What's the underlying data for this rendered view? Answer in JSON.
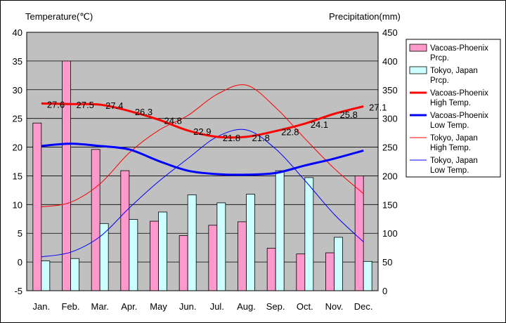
{
  "chart_data": {
    "type": "bar+line",
    "categories": [
      "Jan.",
      "Feb.",
      "Mar.",
      "Apr.",
      "May",
      "Jun.",
      "Jul.",
      "Aug.",
      "Sep.",
      "Oct.",
      "Nov.",
      "Dec."
    ],
    "y_left": {
      "label": "Temperature(℃)",
      "range": [
        -5,
        40
      ],
      "ticks": [
        -5,
        0,
        5,
        10,
        15,
        20,
        25,
        30,
        35,
        40
      ]
    },
    "y_right": {
      "label": "Precipitation(mm)",
      "range": [
        0,
        450
      ],
      "ticks": [
        0,
        50,
        100,
        150,
        200,
        250,
        300,
        350,
        400,
        450
      ]
    },
    "grid": true,
    "legend_position": "right",
    "bar_series": [
      {
        "name": "Vacoas-Phoenix Prcp.",
        "color": "#ff99cc",
        "values": [
          292,
          400,
          246,
          209,
          121,
          96,
          114,
          120,
          74,
          64,
          66,
          200
        ]
      },
      {
        "name": "Tokyo, Japan Prcp.",
        "color": "#ccffff",
        "values": [
          52,
          56,
          117,
          124,
          137,
          167,
          153,
          168,
          209,
          197,
          93,
          51
        ]
      }
    ],
    "line_series": [
      {
        "name": "Vacoas-Phoenix High Temp.",
        "color": "#ff0000",
        "width": "thick",
        "values": [
          27.6,
          27.5,
          27.4,
          26.3,
          24.8,
          22.9,
          21.8,
          21.8,
          22.8,
          24.1,
          25.8,
          27.1
        ],
        "labels": [
          "27.6",
          "27.5",
          "27.4",
          "26.3",
          "24.8",
          "22.9",
          "21.8",
          "21.8",
          "22.8",
          "24.1",
          "25.8",
          "27.1"
        ]
      },
      {
        "name": "Vacoas-Phoenix Low Temp.",
        "color": "#0000ff",
        "width": "thick",
        "values": [
          20.2,
          20.6,
          20.2,
          19.6,
          17.6,
          15.9,
          15.3,
          15.2,
          15.5,
          16.8,
          18.0,
          19.4
        ]
      },
      {
        "name": "Tokyo, Japan High Temp.",
        "color": "#ff0000",
        "width": "thin",
        "values": [
          9.6,
          10.4,
          13.6,
          19.0,
          22.9,
          25.5,
          29.2,
          30.8,
          26.9,
          21.5,
          16.3,
          11.9
        ]
      },
      {
        "name": "Tokyo, Japan Low Temp.",
        "color": "#0000ff",
        "width": "thin",
        "values": [
          0.9,
          1.7,
          4.4,
          9.4,
          14.0,
          18.0,
          21.8,
          23.0,
          19.7,
          14.2,
          8.3,
          3.5
        ]
      }
    ]
  }
}
